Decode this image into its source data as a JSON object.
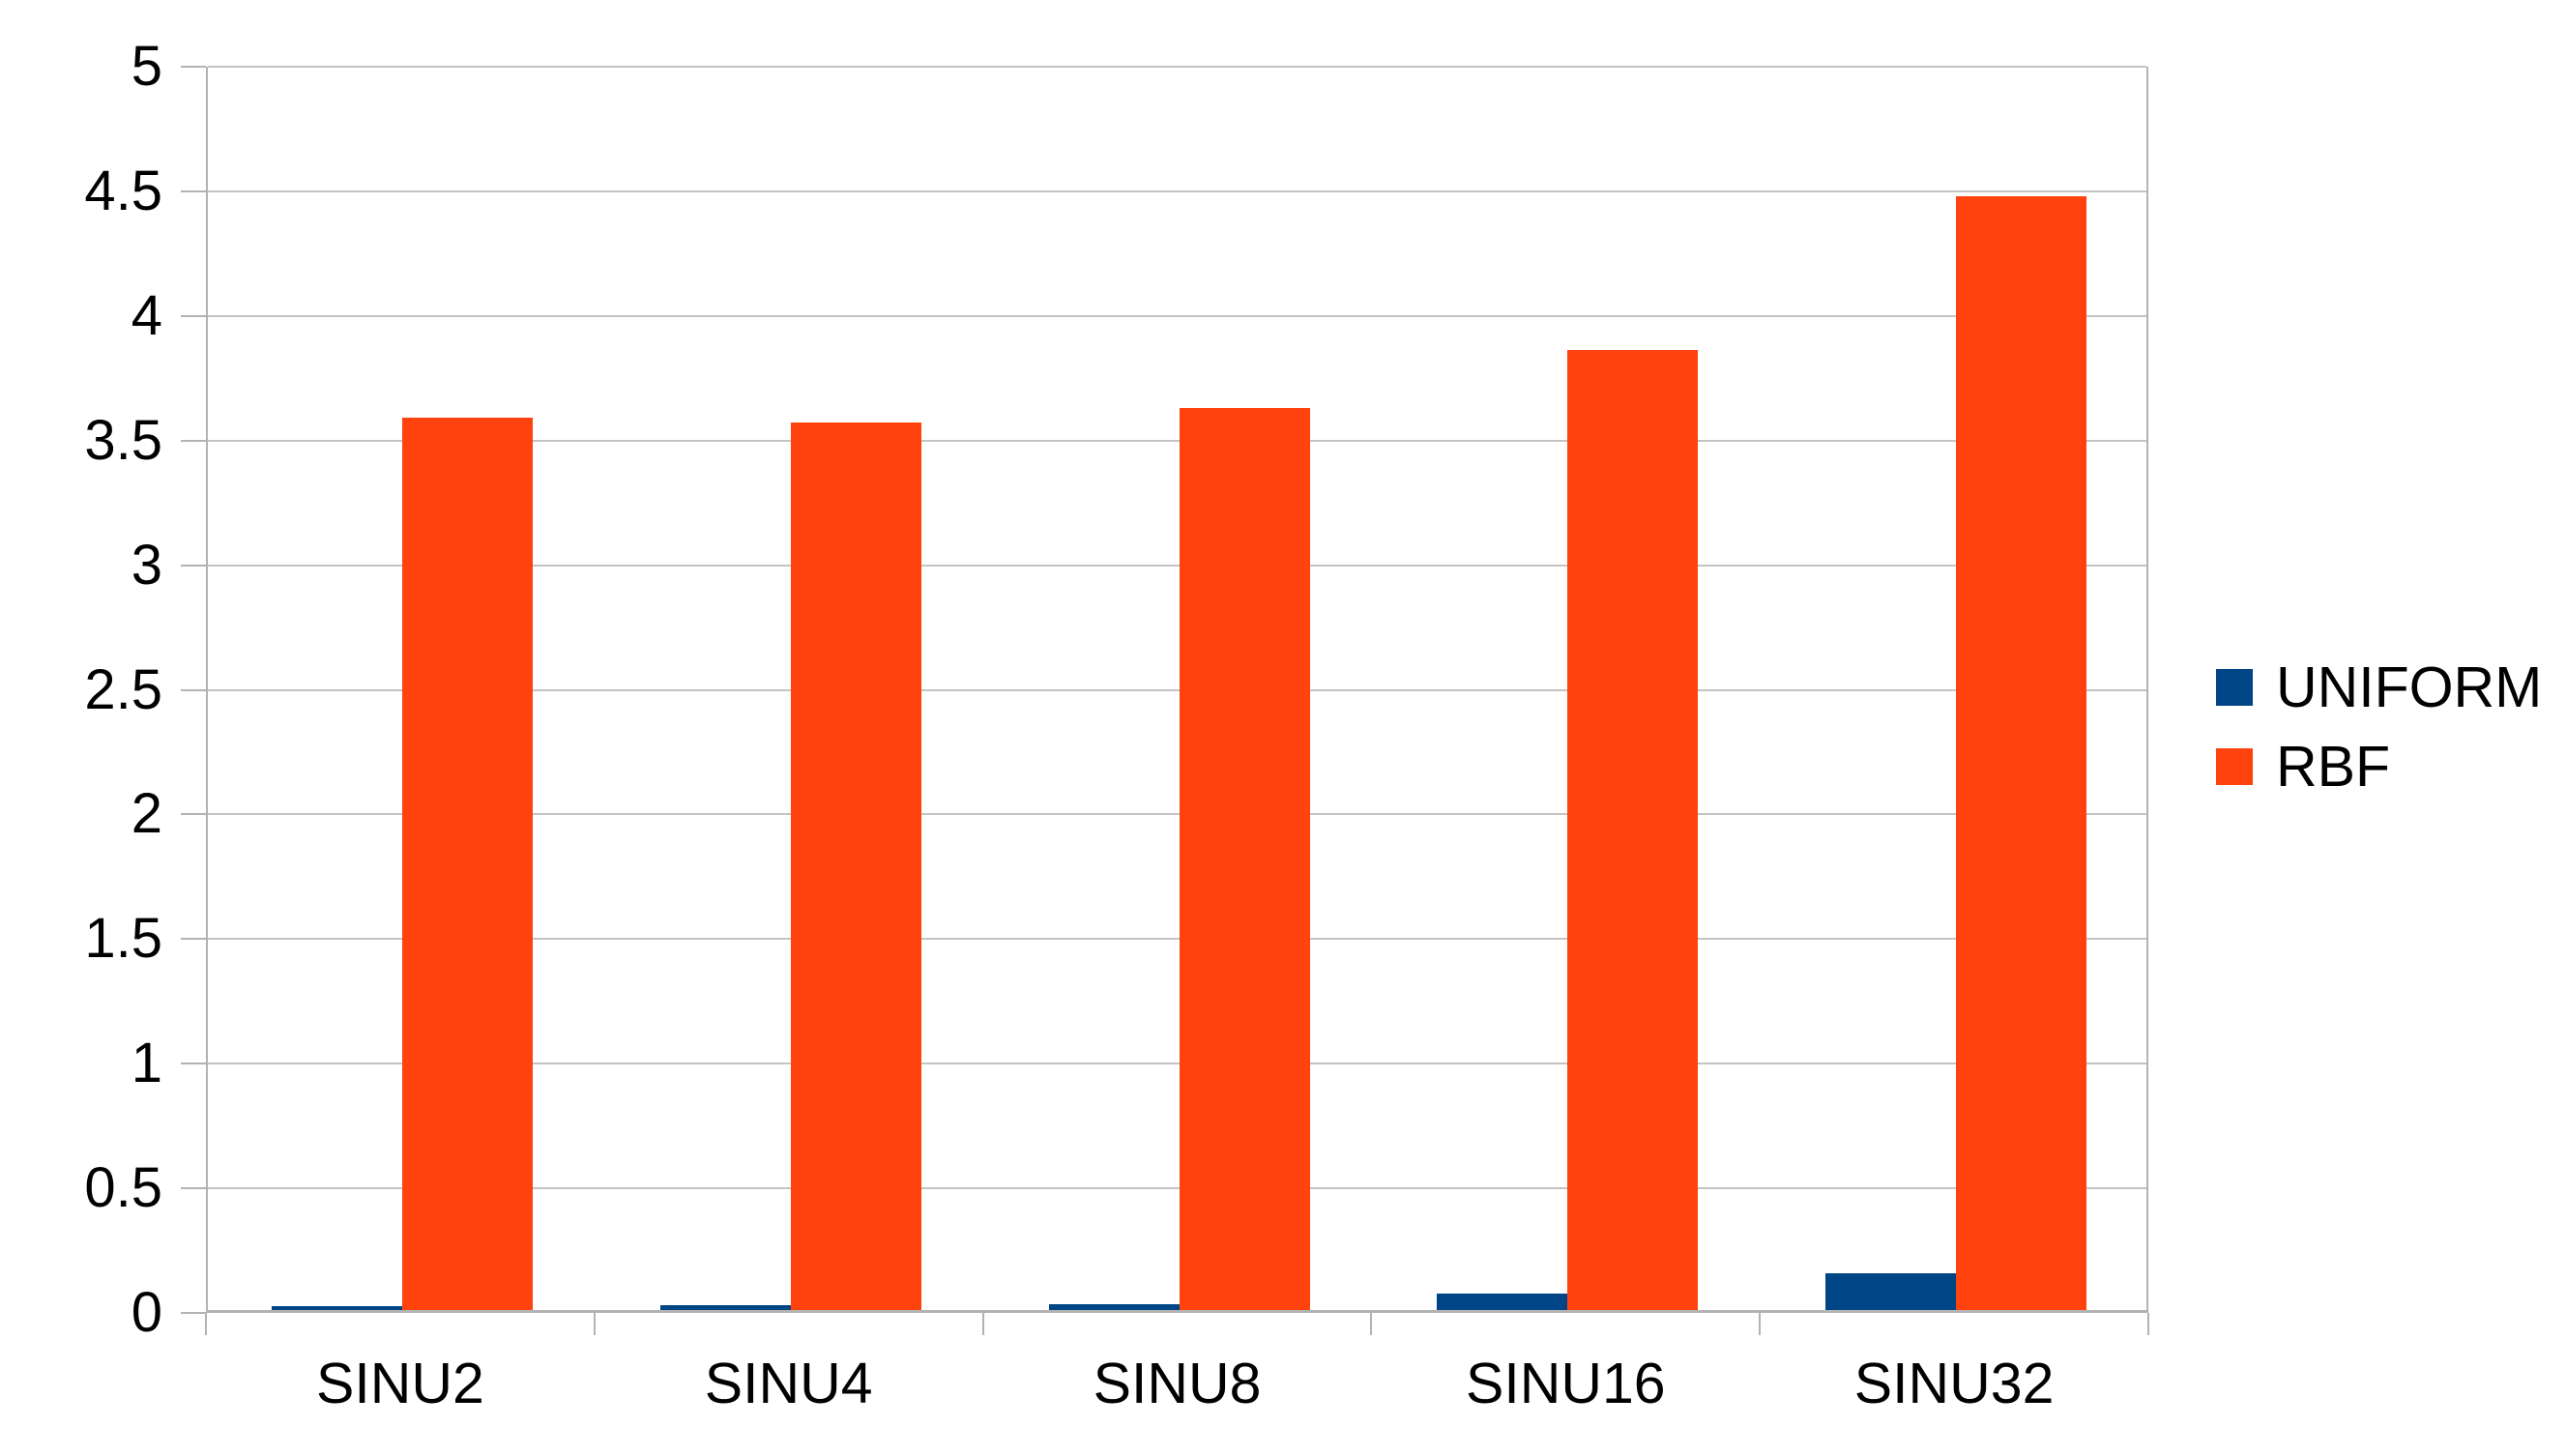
{
  "chart_data": {
    "type": "bar",
    "title": "",
    "xlabel": "",
    "ylabel": "",
    "categories": [
      "SINU2",
      "SINU4",
      "SINU8",
      "SINU16",
      "SINU32"
    ],
    "series": [
      {
        "name": "UNIFORM",
        "color": "#004586",
        "values": [
          0.015,
          0.018,
          0.022,
          0.065,
          0.147
        ]
      },
      {
        "name": "RBF",
        "color": "#FF420E",
        "values": [
          3.58,
          3.56,
          3.62,
          3.85,
          4.47
        ]
      }
    ],
    "ylim": [
      0,
      5
    ],
    "ytick_step": 0.5,
    "ytick_labels": [
      "0",
      "0.5",
      "1",
      "1.5",
      "2",
      "2.5",
      "3",
      "3.5",
      "4",
      "4.5",
      "5"
    ],
    "grid": true,
    "legend_position": "right",
    "legend_labels": [
      "UNIFORM",
      "RBF"
    ]
  },
  "colors": {
    "background": "#FFFFFF",
    "uniform_series": "#004586",
    "rbf_series": "#FF420E",
    "gridline": "#C4C4C4",
    "axis": "#B3B3B3",
    "text": "#000000"
  }
}
